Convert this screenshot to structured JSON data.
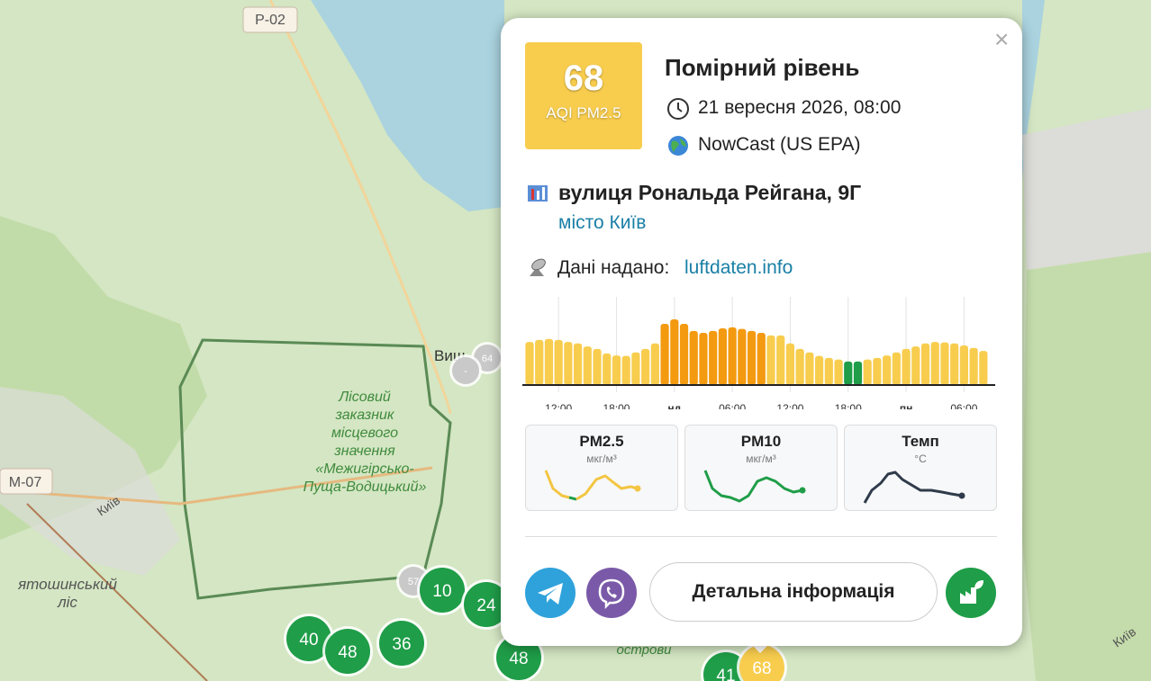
{
  "map": {
    "road_labels": [
      "Р-02",
      "М-07"
    ],
    "place_labels": [
      "Виш",
      "Лісовий\nзаказник\nмісцевого\nзначення\n«Межигірсько-\nПуща-Водицький»",
      "Київ",
      "ятошинський\nліс",
      "острови",
      "Київ"
    ],
    "markers": [
      {
        "label": "64",
        "color": "#c9c9c9"
      },
      {
        "label": "-",
        "color": "#c9c9c9"
      },
      {
        "label": "57",
        "color": "#c9c9c9"
      },
      {
        "label": "10",
        "color": "#1f9d48"
      },
      {
        "label": "24",
        "color": "#1f9d48"
      },
      {
        "label": "40",
        "color": "#1f9d48"
      },
      {
        "label": "48",
        "color": "#1f9d48"
      },
      {
        "label": "36",
        "color": "#1f9d48"
      },
      {
        "label": "48",
        "color": "#1f9d48"
      },
      {
        "label": "41",
        "color": "#1f9d48"
      },
      {
        "label": "68",
        "color": "#f8cd4e"
      }
    ]
  },
  "popup": {
    "close": "×",
    "aqi_value": "68",
    "aqi_label": "AQI PM2.5",
    "level": "Помірний рівень",
    "datetime": "21 вересня 2026, 08:00",
    "method": "NowCast (US EPA)",
    "address": "вулиця Рональда Рейгана, 9Г",
    "city": "місто Київ",
    "source_label": "Дані надано:",
    "source_link": "luftdaten.info",
    "history": {
      "type": "bar",
      "ylim": [
        0,
        140
      ],
      "x_labels": [
        "12:00",
        "18:00",
        "нд",
        "06:00",
        "12:00",
        "18:00",
        "пн",
        "06:00"
      ],
      "values": [
        86,
        90,
        92,
        90,
        86,
        83,
        77,
        72,
        63,
        59,
        58,
        65,
        72,
        83,
        122,
        131,
        122,
        108,
        104,
        108,
        113,
        115,
        112,
        108,
        104,
        99,
        99,
        83,
        72,
        65,
        58,
        54,
        51,
        47,
        47,
        51,
        54,
        59,
        65,
        72,
        77,
        83,
        86,
        85,
        83,
        79,
        74,
        68
      ],
      "colors": [
        "#f8cd4e",
        "#f8cd4e",
        "#f8cd4e",
        "#f8cd4e",
        "#f8cd4e",
        "#f8cd4e",
        "#f8cd4e",
        "#f8cd4e",
        "#f8cd4e",
        "#f8cd4e",
        "#f8cd4e",
        "#f8cd4e",
        "#f8cd4e",
        "#f8cd4e",
        "#f39a10",
        "#f39a10",
        "#f39a10",
        "#f39a10",
        "#f39a10",
        "#f39a10",
        "#f39a10",
        "#f39a10",
        "#f39a10",
        "#f39a10",
        "#f39a10",
        "#f8cd4e",
        "#f8cd4e",
        "#f8cd4e",
        "#f8cd4e",
        "#f8cd4e",
        "#f8cd4e",
        "#f8cd4e",
        "#f8cd4e",
        "#1f9d48",
        "#1f9d48",
        "#f8cd4e",
        "#f8cd4e",
        "#f8cd4e",
        "#f8cd4e",
        "#f8cd4e",
        "#f8cd4e",
        "#f8cd4e",
        "#f8cd4e",
        "#f8cd4e",
        "#f8cd4e",
        "#f8cd4e",
        "#f8cd4e",
        "#f8cd4e"
      ]
    },
    "cards": [
      {
        "name": "PM2.5",
        "unit": "мкг/м³"
      },
      {
        "name": "PM10",
        "unit": "мкг/м³"
      },
      {
        "name": "Темп",
        "unit": "°C"
      }
    ],
    "button": "Детальна інформація"
  }
}
